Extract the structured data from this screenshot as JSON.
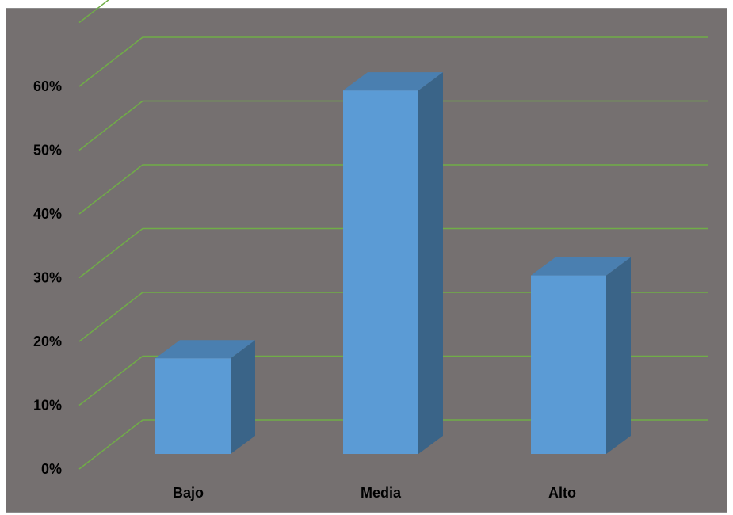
{
  "chart_data": {
    "type": "bar",
    "three_d": true,
    "categories": [
      "Bajo",
      "Media",
      "Alto"
    ],
    "values": [
      15,
      57,
      28
    ],
    "y_tick_labels": [
      "0%",
      "10%",
      "20%",
      "30%",
      "40%",
      "50%",
      "60%"
    ],
    "ylim": [
      0,
      60
    ],
    "title": "",
    "xlabel": "",
    "ylabel": "",
    "grid": true,
    "legend": "none"
  },
  "colors": {
    "background": "#757070",
    "gridline": "#70ad47",
    "bar_front": "#5b9bd5",
    "bar_top": "#4a7fb0",
    "bar_side": "#3a6488"
  }
}
